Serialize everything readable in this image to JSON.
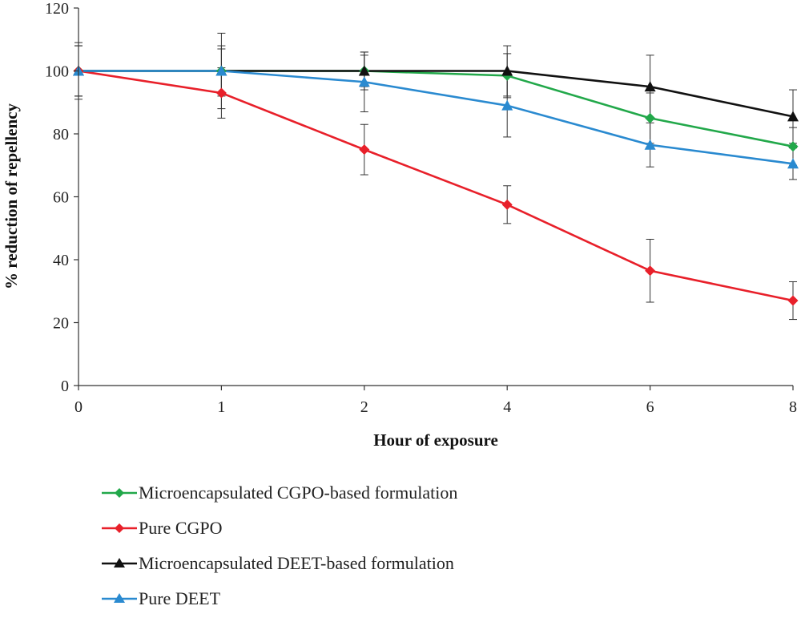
{
  "chart_data": {
    "type": "line",
    "xlabel": "Hour of exposure",
    "ylabel": "% reduction of repellency",
    "categories": [
      "0",
      "1",
      "2",
      "4",
      "6",
      "8"
    ],
    "ylim": [
      0,
      120
    ],
    "yticks": [
      0,
      20,
      40,
      60,
      80,
      100,
      120
    ],
    "grid": false,
    "legend_position": "bottom",
    "series": [
      {
        "name": "Microencapsulated CGPO-based formulation",
        "color": "#22a84a",
        "marker": "diamond",
        "values": [
          100,
          100,
          100,
          98.5,
          85,
          76
        ],
        "errors": [
          8,
          7,
          5,
          7,
          8,
          6
        ]
      },
      {
        "name": "Pure CGPO",
        "color": "#e8202a",
        "marker": "diamond",
        "values": [
          100,
          93,
          75,
          57.5,
          36.5,
          27
        ],
        "errors": [
          8,
          8,
          8,
          6,
          10,
          6
        ]
      },
      {
        "name": "Microencapsulated DEET-based formulation",
        "color": "#111111",
        "marker": "triangle",
        "values": [
          100,
          100,
          100,
          100,
          95,
          85.5
        ],
        "errors": [
          9,
          12,
          6,
          8,
          10,
          8.5
        ]
      },
      {
        "name": "Pure DEET",
        "color": "#2a8ad0",
        "marker": "triangle",
        "values": [
          100,
          100,
          96.5,
          89,
          76.5,
          70.5
        ],
        "errors": [
          8,
          8,
          9.5,
          10,
          7,
          5
        ]
      }
    ]
  }
}
